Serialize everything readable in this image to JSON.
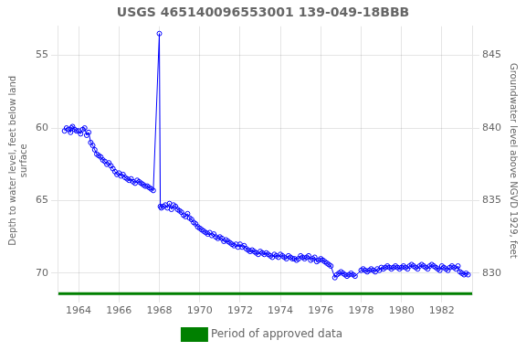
{
  "chart_data": {
    "type": "line",
    "title": "USGS 465140096553001 139-049-18BBB",
    "y_label": "Depth to water level, feet below land\nsurface",
    "y2_label": "Groundwater level above NGVD 1929, feet",
    "xlim": [
      1963.0,
      1983.5
    ],
    "xticks": [
      1964,
      1966,
      1968,
      1970,
      1972,
      1974,
      1976,
      1978,
      1980,
      1982
    ],
    "ylim": [
      71.5,
      53.0
    ],
    "yticks": [
      55,
      60,
      65,
      70
    ],
    "y2lim": [
      828.5,
      847.0
    ],
    "y2ticks": [
      830,
      835,
      840,
      845
    ],
    "grid": true,
    "legend": "bottom",
    "series": [
      {
        "color": "#0000ff",
        "marker": "circle",
        "line_style": "solid",
        "x": [
          1963.3,
          1963.4,
          1963.5,
          1963.6,
          1963.65,
          1963.7,
          1963.8,
          1963.9,
          1964.0,
          1964.1,
          1964.2,
          1964.3,
          1964.4,
          1964.5,
          1964.6,
          1964.7,
          1964.8,
          1964.9,
          1965.0,
          1965.1,
          1965.2,
          1965.3,
          1965.4,
          1965.5,
          1965.6,
          1965.7,
          1965.8,
          1965.9,
          1966.0,
          1966.1,
          1966.2,
          1966.3,
          1966.4,
          1966.5,
          1966.6,
          1966.7,
          1966.8,
          1966.9,
          1967.0,
          1967.1,
          1967.2,
          1967.3,
          1967.4,
          1967.5,
          1967.6,
          1967.7,
          1968.0,
          1968.05,
          1968.1,
          1968.2,
          1968.3,
          1968.4,
          1968.5,
          1968.6,
          1968.7,
          1968.8,
          1968.9,
          1969.0,
          1969.1,
          1969.2,
          1969.3,
          1969.4,
          1969.5,
          1969.6,
          1969.7,
          1969.8,
          1969.9,
          1970.0,
          1970.1,
          1970.2,
          1970.3,
          1970.4,
          1970.5,
          1970.6,
          1970.7,
          1970.8,
          1970.9,
          1971.0,
          1971.1,
          1971.2,
          1971.3,
          1971.4,
          1971.5,
          1971.6,
          1971.7,
          1971.8,
          1971.9,
          1972.0,
          1972.1,
          1972.2,
          1972.3,
          1972.4,
          1972.5,
          1972.6,
          1972.7,
          1972.8,
          1972.9,
          1973.0,
          1973.1,
          1973.2,
          1973.3,
          1973.4,
          1973.5,
          1973.6,
          1973.7,
          1973.8,
          1973.9,
          1974.0,
          1974.1,
          1974.2,
          1974.3,
          1974.4,
          1974.5,
          1974.6,
          1974.7,
          1974.8,
          1974.9,
          1975.0,
          1975.1,
          1975.2,
          1975.3,
          1975.4,
          1975.5,
          1975.6,
          1975.7,
          1975.8,
          1975.9,
          1976.0,
          1976.1,
          1976.2,
          1976.3,
          1976.4,
          1976.5,
          1976.7,
          1976.8,
          1976.9,
          1977.0,
          1977.1,
          1977.2,
          1977.3,
          1977.4,
          1977.5,
          1977.6,
          1977.7,
          1978.0,
          1978.1,
          1978.2,
          1978.3,
          1978.4,
          1978.5,
          1978.6,
          1978.7,
          1978.8,
          1978.9,
          1979.0,
          1979.1,
          1979.2,
          1979.3,
          1979.4,
          1979.5,
          1979.6,
          1979.7,
          1979.8,
          1979.9,
          1980.0,
          1980.1,
          1980.2,
          1980.3,
          1980.4,
          1980.5,
          1980.6,
          1980.7,
          1980.8,
          1980.9,
          1981.0,
          1981.1,
          1981.2,
          1981.3,
          1981.4,
          1981.5,
          1981.6,
          1981.7,
          1981.8,
          1981.9,
          1982.0,
          1982.1,
          1982.2,
          1982.3,
          1982.4,
          1982.5,
          1982.6,
          1982.7,
          1982.8,
          1982.9,
          1983.0,
          1983.1,
          1983.2,
          1983.3
        ],
        "values": [
          60.2,
          60.0,
          60.1,
          60.3,
          60.0,
          59.9,
          60.1,
          60.2,
          60.2,
          60.4,
          60.1,
          60.0,
          60.5,
          60.3,
          61.0,
          61.2,
          61.5,
          61.8,
          61.9,
          62.0,
          62.2,
          62.3,
          62.5,
          62.4,
          62.6,
          62.8,
          63.0,
          63.2,
          63.1,
          63.3,
          63.2,
          63.4,
          63.5,
          63.6,
          63.5,
          63.7,
          63.8,
          63.6,
          63.7,
          63.8,
          63.9,
          64.0,
          64.0,
          64.1,
          64.2,
          64.3,
          53.5,
          65.4,
          65.5,
          65.4,
          65.3,
          65.5,
          65.2,
          65.6,
          65.3,
          65.4,
          65.6,
          65.7,
          65.8,
          66.0,
          66.1,
          65.9,
          66.2,
          66.3,
          66.5,
          66.6,
          66.8,
          66.9,
          67.0,
          67.1,
          67.2,
          67.3,
          67.2,
          67.4,
          67.3,
          67.5,
          67.6,
          67.5,
          67.6,
          67.8,
          67.7,
          67.8,
          67.9,
          68.0,
          68.1,
          68.0,
          68.2,
          68.0,
          68.2,
          68.1,
          68.3,
          68.4,
          68.5,
          68.4,
          68.5,
          68.6,
          68.7,
          68.5,
          68.6,
          68.7,
          68.6,
          68.7,
          68.8,
          68.9,
          68.7,
          68.8,
          68.9,
          68.7,
          68.8,
          68.9,
          69.0,
          68.8,
          68.9,
          69.0,
          69.0,
          69.1,
          69.0,
          68.8,
          68.9,
          69.0,
          68.9,
          68.8,
          69.1,
          69.0,
          68.9,
          69.2,
          69.1,
          69.0,
          69.1,
          69.2,
          69.3,
          69.4,
          69.5,
          70.3,
          70.1,
          70.0,
          69.9,
          70.0,
          70.1,
          70.2,
          70.1,
          70.0,
          70.1,
          70.2,
          69.8,
          69.7,
          69.8,
          69.9,
          69.8,
          69.7,
          69.8,
          69.9,
          69.7,
          69.8,
          69.6,
          69.7,
          69.6,
          69.5,
          69.6,
          69.7,
          69.6,
          69.5,
          69.6,
          69.7,
          69.6,
          69.5,
          69.6,
          69.7,
          69.5,
          69.4,
          69.5,
          69.6,
          69.7,
          69.5,
          69.4,
          69.5,
          69.6,
          69.7,
          69.5,
          69.4,
          69.5,
          69.6,
          69.7,
          69.8,
          69.5,
          69.6,
          69.7,
          69.8,
          69.6,
          69.5,
          69.6,
          69.7,
          69.5,
          69.9,
          70.0,
          70.1,
          70.0,
          70.1
        ]
      },
      {
        "name": "Period of approved data",
        "color": "#008000",
        "marker": "none",
        "line_style": "solid",
        "x": [
          1963.0,
          1983.5
        ],
        "values": [
          71.5,
          71.5
        ]
      }
    ]
  }
}
